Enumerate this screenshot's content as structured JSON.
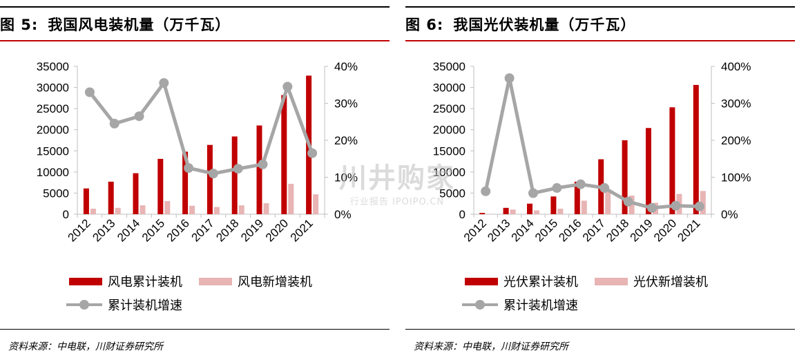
{
  "colors": {
    "cumulative_bar": "#c00000",
    "new_bar": "#e8b4b4",
    "growth_line": "#a6a6a6",
    "title_rule": "#c00000"
  },
  "figures": [
    {
      "title_num": "图 5:",
      "title_text": "我国风电装机量（万千瓦）",
      "source": "资料来源：中电联，川财证券研究所",
      "legend": {
        "cumulative": "风电累计装机",
        "new": "风电新增装机",
        "growth": "累计装机增速"
      }
    },
    {
      "title_num": "图 6:",
      "title_text": "我国光伏装机量（万千瓦）",
      "source": "资料来源：中电联，川财证券研究所",
      "legend": {
        "cumulative": "光伏累计装机",
        "new": "光伏新增装机",
        "growth": "累计装机增速"
      }
    }
  ],
  "watermark": {
    "main": "川井购家",
    "sub": "行业报告 IPOIPO.CN"
  },
  "chart_data": [
    {
      "type": "bar",
      "title": "我国风电装机量（万千瓦）",
      "categories": [
        "2012",
        "2013",
        "2014",
        "2015",
        "2016",
        "2017",
        "2018",
        "2019",
        "2020",
        "2021"
      ],
      "series": [
        {
          "name": "风电累计装机",
          "axis": "left",
          "kind": "bar",
          "values": [
            6100,
            7700,
            9700,
            13100,
            14800,
            16400,
            18400,
            21000,
            28200,
            32800
          ]
        },
        {
          "name": "风电新增装机",
          "axis": "left",
          "kind": "bar",
          "values": [
            1300,
            1500,
            2100,
            3100,
            2000,
            1700,
            2100,
            2600,
            7200,
            4700
          ]
        },
        {
          "name": "累计装机增速",
          "axis": "right",
          "kind": "line",
          "values": [
            33,
            24.5,
            26.5,
            35.5,
            12.5,
            11,
            12.3,
            13.5,
            34.5,
            16.5
          ]
        }
      ],
      "ylim_left": [
        0,
        35000
      ],
      "yticks_left": [
        "0",
        "5000",
        "10000",
        "15000",
        "20000",
        "25000",
        "30000",
        "35000"
      ],
      "ylim_right": [
        0,
        40
      ],
      "yticks_right": [
        "0%",
        "10%",
        "20%",
        "30%",
        "40%"
      ],
      "legend_position": "bottom",
      "grid": false
    },
    {
      "type": "bar",
      "title": "我国光伏装机量（万千瓦）",
      "categories": [
        "2012",
        "2013",
        "2014",
        "2015",
        "2016",
        "2017",
        "2018",
        "2019",
        "2020",
        "2021"
      ],
      "series": [
        {
          "name": "光伏累计装机",
          "axis": "left",
          "kind": "bar",
          "values": [
            300,
            1500,
            2500,
            4200,
            7700,
            13000,
            17500,
            20400,
            25300,
            30600
          ]
        },
        {
          "name": "光伏新增装机",
          "axis": "left",
          "kind": "bar",
          "values": [
            100,
            1100,
            900,
            1300,
            3200,
            5300,
            4400,
            2700,
            4800,
            5500
          ]
        },
        {
          "name": "累计装机增速",
          "axis": "right",
          "kind": "line",
          "values": [
            62,
            368,
            57,
            71,
            81,
            71,
            34,
            17,
            23,
            21
          ]
        }
      ],
      "ylim_left": [
        0,
        35000
      ],
      "yticks_left": [
        "0",
        "5000",
        "10000",
        "15000",
        "20000",
        "25000",
        "30000",
        "35000"
      ],
      "ylim_right": [
        0,
        400
      ],
      "yticks_right": [
        "0%",
        "100%",
        "200%",
        "300%",
        "400%"
      ],
      "legend_position": "bottom",
      "grid": false
    }
  ]
}
